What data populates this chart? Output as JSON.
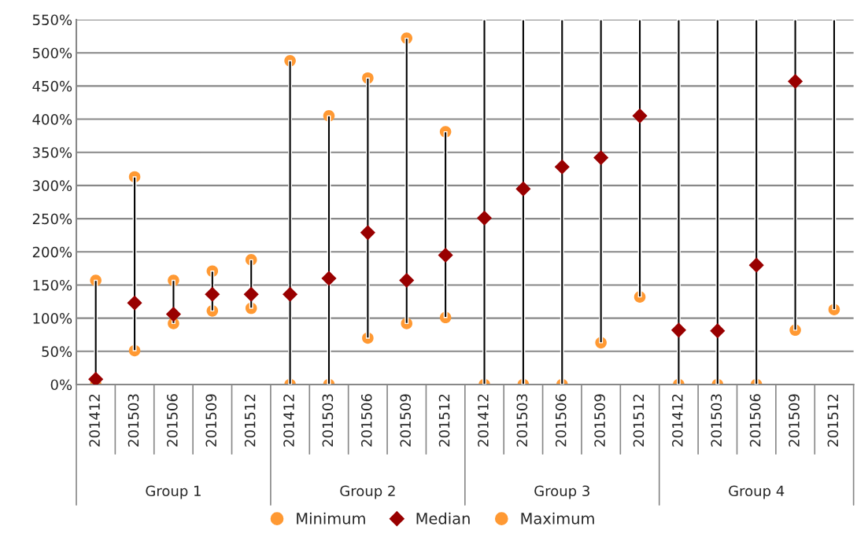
{
  "chart_data": {
    "type": "scatter",
    "categories": [
      "201412",
      "201503",
      "201506",
      "201509",
      "201512",
      "201412",
      "201503",
      "201506",
      "201509",
      "201512",
      "201412",
      "201503",
      "201506",
      "201509",
      "201512",
      "201412",
      "201503",
      "201506",
      "201509",
      "201512"
    ],
    "series": [
      {
        "type": "bar",
        "color": "#000000",
        "base": [
          0,
          51,
          92,
          111,
          115,
          0,
          0,
          70,
          92,
          101,
          0,
          0,
          0,
          63,
          132,
          0,
          0,
          0,
          82,
          113
        ],
        "values": [
          157,
          262,
          65,
          60,
          73,
          488,
          405,
          392,
          430,
          280,
          550,
          550,
          550,
          487,
          418,
          550,
          550,
          550,
          468,
          437
        ]
      },
      {
        "name": "Minimum",
        "color": "#ff9933",
        "marker": "circle",
        "values": [
          0,
          51,
          92,
          111,
          115,
          0,
          0,
          70,
          92,
          101,
          0,
          0,
          0,
          63,
          132,
          0,
          0,
          0,
          82,
          113
        ]
      },
      {
        "name": "Median",
        "color": "#990000",
        "marker": "diamond",
        "values": [
          8,
          123,
          106,
          136,
          136,
          136,
          160,
          229,
          157,
          195,
          251,
          295,
          328,
          342,
          405,
          82,
          81,
          180,
          457,
          null
        ]
      },
      {
        "name": "Maximum",
        "color": "#ff9933",
        "marker": "circle",
        "values": [
          157,
          313,
          157,
          171,
          188,
          488,
          405,
          462,
          522,
          381,
          null,
          null,
          null,
          null,
          null,
          null,
          null,
          null,
          null,
          null
        ]
      }
    ],
    "annotations": [
      "Group 1",
      "Group 2",
      "Group 3",
      "Group 4"
    ],
    "ylim": [
      0,
      550
    ],
    "yticks": [
      {
        "value": 0,
        "label": "0%"
      },
      {
        "value": 50,
        "label": "50%"
      },
      {
        "value": 100,
        "label": "100%"
      },
      {
        "value": 150,
        "label": "150%"
      },
      {
        "value": 200,
        "label": "200%"
      },
      {
        "value": 250,
        "label": "250%"
      },
      {
        "value": 300,
        "label": "300%"
      },
      {
        "value": 350,
        "label": "350%"
      },
      {
        "value": 400,
        "label": "400%"
      },
      {
        "value": 450,
        "label": "450%"
      },
      {
        "value": 500,
        "label": "500%"
      },
      {
        "value": 550,
        "label": "550%"
      }
    ],
    "grid": "y",
    "legend": "bottom"
  }
}
